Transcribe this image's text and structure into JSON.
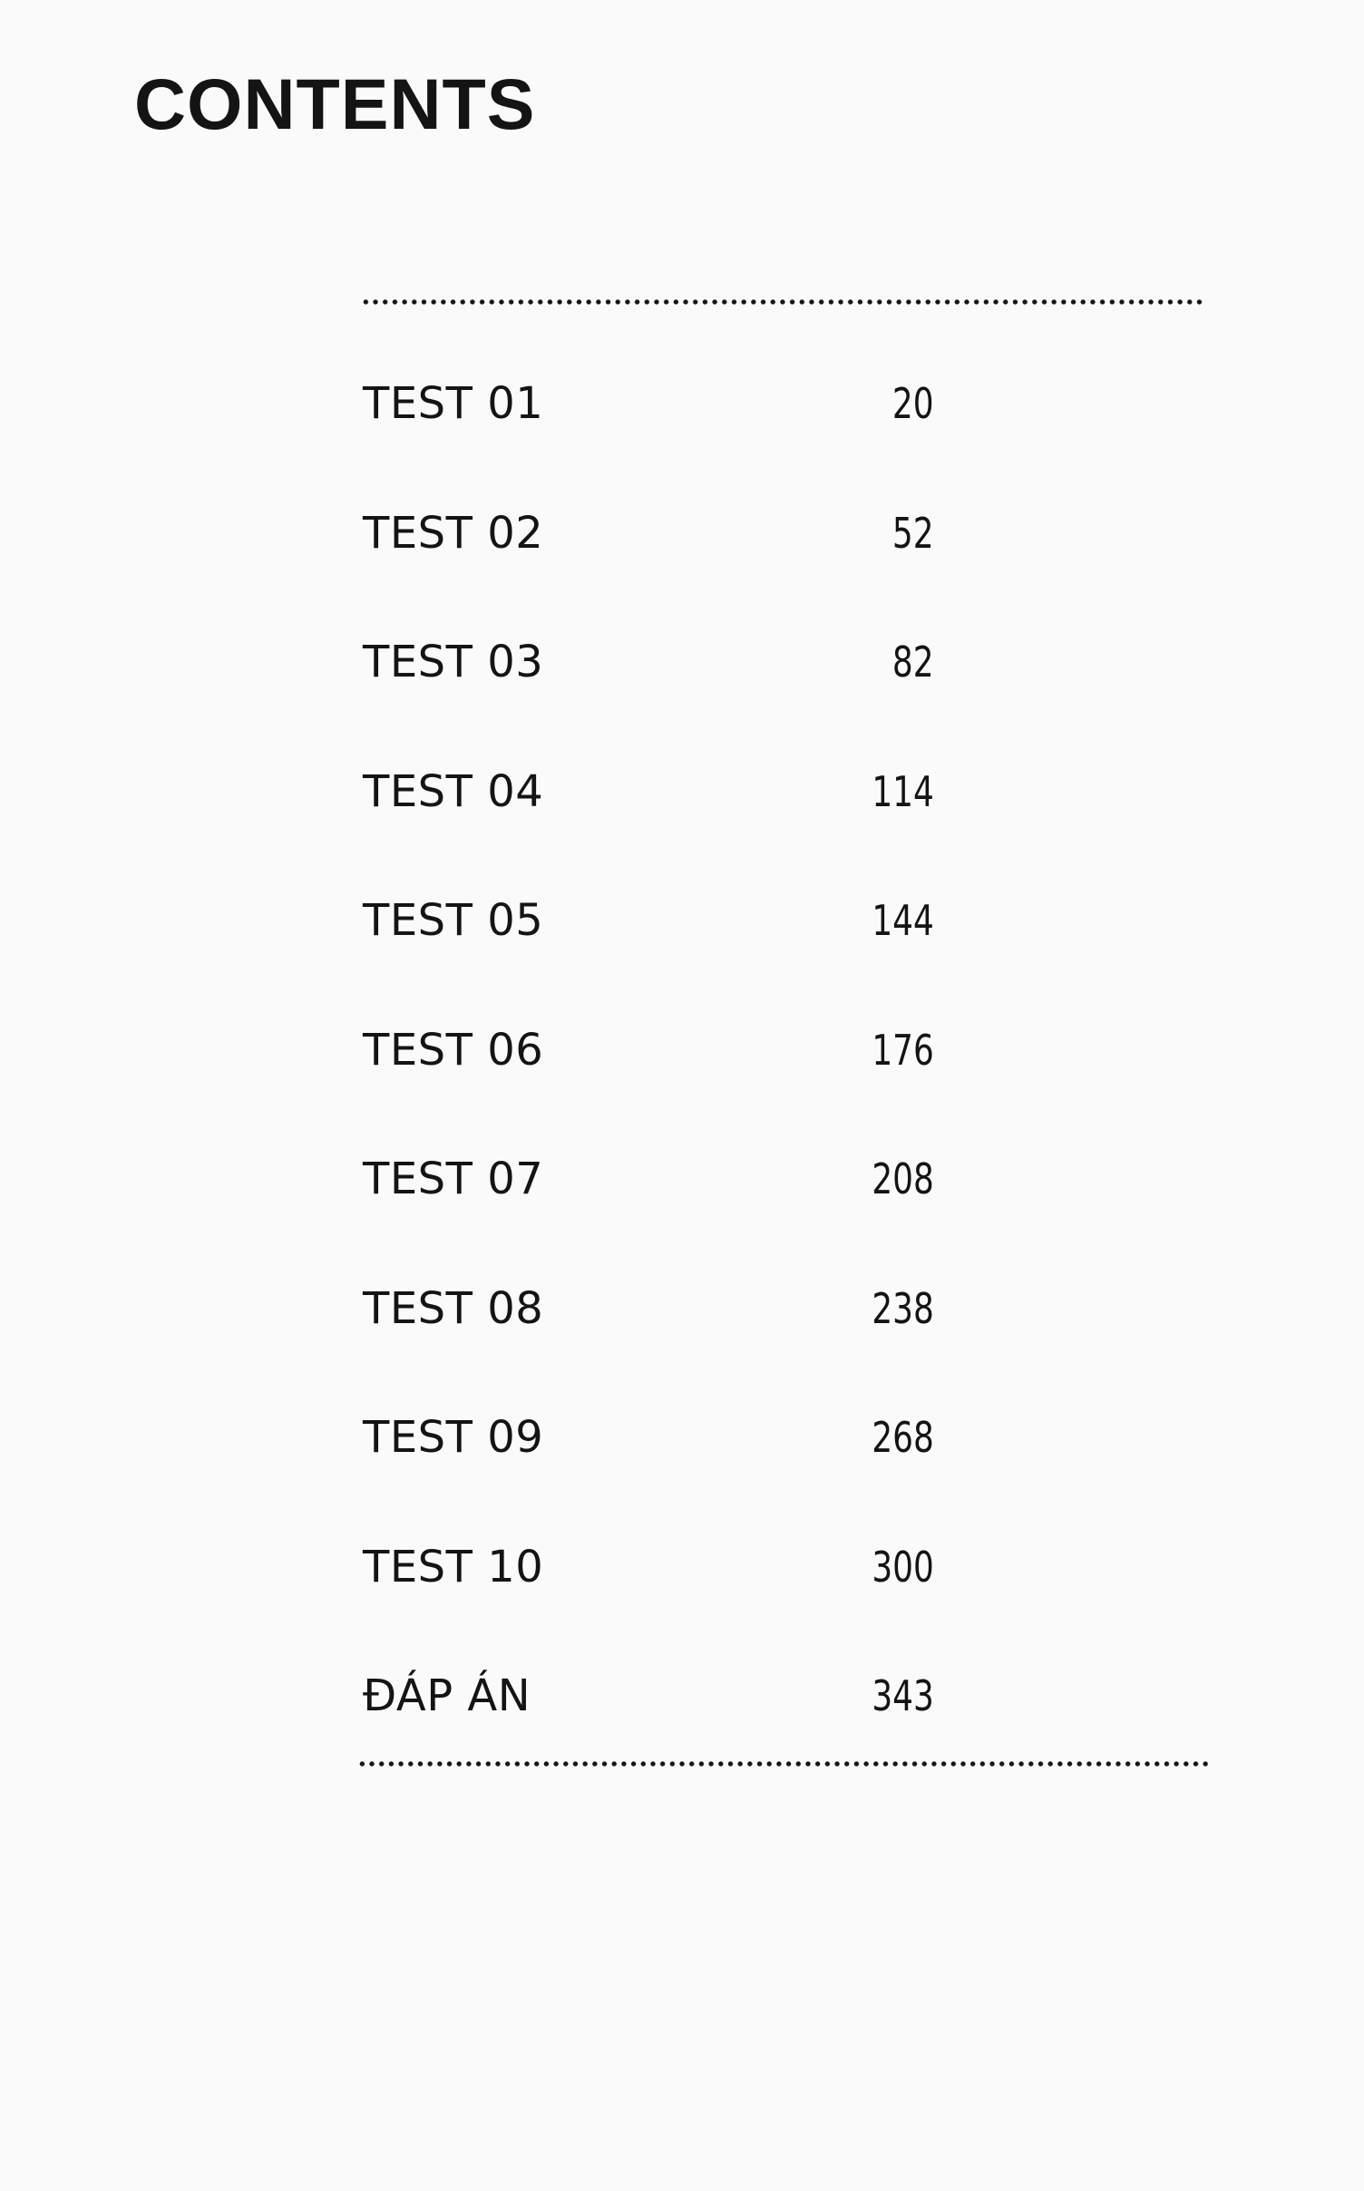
{
  "title": "CONTENTS",
  "entries": [
    {
      "label": "TEST 01",
      "page": "20"
    },
    {
      "label": "TEST 02",
      "page": "52"
    },
    {
      "label": "TEST 03",
      "page": "82"
    },
    {
      "label": "TEST 04",
      "page": "114"
    },
    {
      "label": "TEST 05",
      "page": "144"
    },
    {
      "label": "TEST 06",
      "page": "176"
    },
    {
      "label": "TEST 07",
      "page": "208"
    },
    {
      "label": "TEST 08",
      "page": "238"
    },
    {
      "label": "TEST 09",
      "page": "268"
    },
    {
      "label": "TEST 10",
      "page": "300"
    },
    {
      "label": "ĐÁP ÁN",
      "page": "343"
    }
  ]
}
